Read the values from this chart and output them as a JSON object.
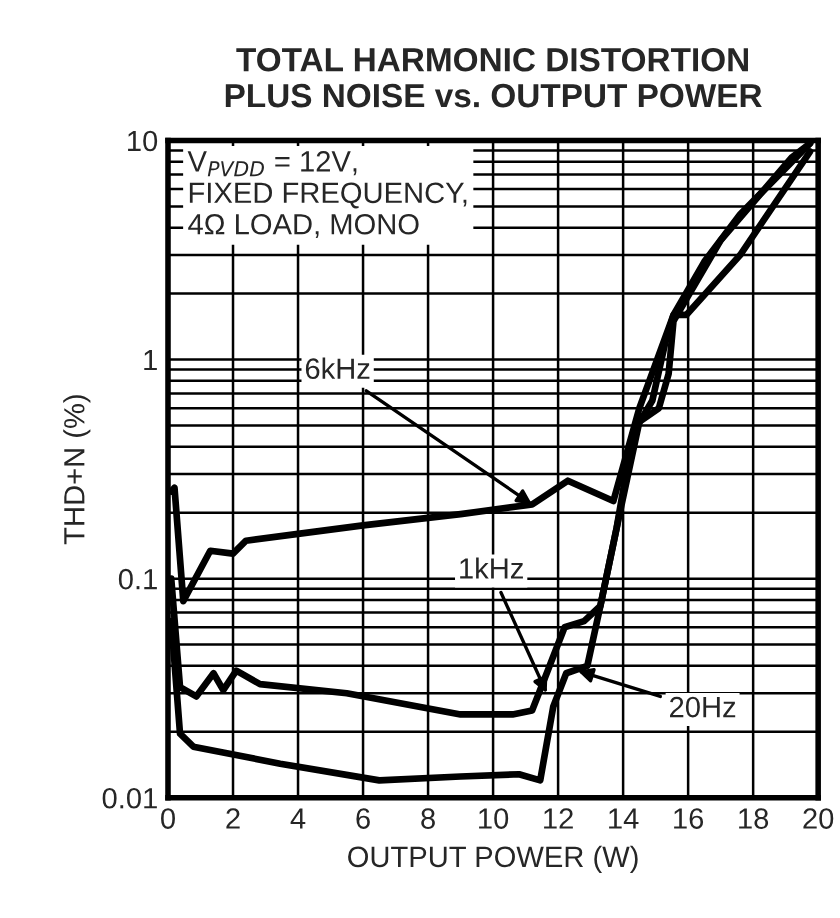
{
  "chart_data": {
    "type": "line",
    "title": "TOTAL HARMONIC DISTORTION\nPLUS NOISE vs. OUTPUT POWER",
    "xlabel": "OUTPUT POWER (W)",
    "ylabel": "THD+N (%)",
    "log": "y",
    "xlim": [
      0,
      20
    ],
    "xticks": [
      0,
      2,
      4,
      6,
      8,
      10,
      12,
      14,
      16,
      18,
      20
    ],
    "ylim": [
      0.01,
      10
    ],
    "yticks": [
      0.01,
      0.1,
      1,
      10
    ],
    "grid": true,
    "marker": "none",
    "line_style": "solid",
    "series": [
      {
        "color": "#000000",
        "x": [
          0.1,
          0.2,
          0.47,
          1.3,
          2.0,
          2.4,
          4.0,
          6.0,
          9.0,
          11.2,
          12.3,
          13.7,
          14.5,
          15.55,
          16.5,
          17.6,
          19.75
        ],
        "values": [
          0.25,
          0.26,
          0.079,
          0.134,
          0.13,
          0.149,
          0.16,
          0.175,
          0.197,
          0.218,
          0.28,
          0.226,
          0.6,
          1.6,
          2.8,
          4.6,
          9.7
        ]
      },
      {
        "color": "#000000",
        "x": [
          0.1,
          0.37,
          0.87,
          1.4,
          1.7,
          2.1,
          2.83,
          5.5,
          9.0,
          10.6,
          11.2,
          11.65,
          12.2,
          12.8,
          13.3,
          13.8,
          14.3,
          14.9,
          15.3,
          15.55,
          15.95,
          17.6,
          19.75
        ],
        "values": [
          0.1,
          0.032,
          0.029,
          0.037,
          0.031,
          0.038,
          0.033,
          0.03,
          0.024,
          0.024,
          0.025,
          0.037,
          0.06,
          0.064,
          0.075,
          0.17,
          0.46,
          0.65,
          1.2,
          1.6,
          1.6,
          3.0,
          8.9
        ]
      },
      {
        "color": "#000000",
        "x": [
          0.1,
          0.37,
          0.78,
          3.45,
          6.5,
          9.0,
          10.8,
          11.45,
          11.85,
          12.25,
          12.9,
          13.3,
          13.9,
          14.5,
          15.1,
          15.4,
          15.55,
          17.0,
          19.2,
          19.75
        ],
        "values": [
          0.064,
          0.0196,
          0.0171,
          0.0143,
          0.012,
          0.0125,
          0.0128,
          0.012,
          0.026,
          0.037,
          0.04,
          0.075,
          0.2,
          0.52,
          0.6,
          0.86,
          1.5,
          3.5,
          8.4,
          9.7
        ]
      }
    ],
    "annotations": [
      "V$_{PVDD}$ = 12V,\nFIXED FREQUENCY,\n4Ω LOAD, MONO",
      {
        "text": "6kHz",
        "x": 11.2,
        "y": 0.218
      },
      {
        "text": "1kHz",
        "x": 11.65,
        "y": 0.03
      },
      {
        "text": "20Hz",
        "x": 12.6,
        "y": 0.038
      }
    ]
  }
}
